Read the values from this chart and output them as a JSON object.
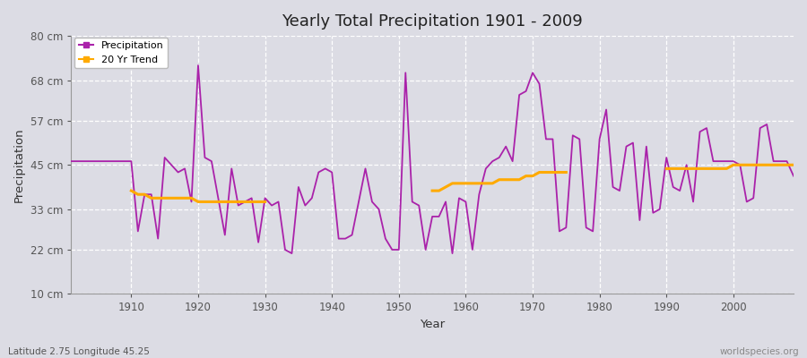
{
  "title": "Yearly Total Precipitation 1901 - 2009",
  "xlabel": "Year",
  "ylabel": "Precipitation",
  "subtitle": "Latitude 2.75 Longitude 45.25",
  "watermark": "worldspecies.org",
  "bg_color": "#dcdce4",
  "plot_bg_color": "#dcdce4",
  "precip_color": "#aa22aa",
  "trend_color": "#ffaa00",
  "ylim": [
    10,
    80
  ],
  "yticks": [
    10,
    22,
    33,
    45,
    57,
    68,
    80
  ],
  "ytick_labels": [
    "10 cm",
    "22 cm",
    "33 cm",
    "45 cm",
    "57 cm",
    "68 cm",
    "80 cm"
  ],
  "years": [
    1901,
    1902,
    1903,
    1904,
    1905,
    1906,
    1907,
    1908,
    1909,
    1910,
    1911,
    1912,
    1913,
    1914,
    1915,
    1916,
    1917,
    1918,
    1919,
    1920,
    1921,
    1922,
    1923,
    1924,
    1925,
    1926,
    1927,
    1928,
    1929,
    1930,
    1931,
    1932,
    1933,
    1934,
    1935,
    1936,
    1937,
    1938,
    1939,
    1940,
    1941,
    1942,
    1943,
    1944,
    1945,
    1946,
    1947,
    1948,
    1949,
    1950,
    1951,
    1952,
    1953,
    1954,
    1955,
    1956,
    1957,
    1958,
    1959,
    1960,
    1961,
    1962,
    1963,
    1964,
    1965,
    1966,
    1967,
    1968,
    1969,
    1970,
    1971,
    1972,
    1973,
    1974,
    1975,
    1976,
    1977,
    1978,
    1979,
    1980,
    1981,
    1982,
    1983,
    1984,
    1985,
    1986,
    1987,
    1988,
    1989,
    1990,
    1991,
    1992,
    1993,
    1994,
    1995,
    1996,
    1997,
    1998,
    1999,
    2000,
    2001,
    2002,
    2003,
    2004,
    2005,
    2006,
    2007,
    2008,
    2009
  ],
  "precip": [
    46,
    46,
    46,
    46,
    46,
    46,
    46,
    46,
    46,
    46,
    27,
    37,
    37,
    25,
    47,
    45,
    43,
    44,
    35,
    72,
    47,
    46,
    36,
    26,
    44,
    34,
    35,
    36,
    24,
    36,
    34,
    35,
    22,
    21,
    39,
    34,
    36,
    43,
    44,
    43,
    25,
    25,
    26,
    35,
    44,
    35,
    33,
    25,
    22,
    22,
    70,
    35,
    34,
    22,
    31,
    31,
    35,
    21,
    36,
    35,
    22,
    37,
    44,
    46,
    47,
    50,
    46,
    64,
    65,
    70,
    67,
    52,
    52,
    27,
    28,
    53,
    52,
    28,
    27,
    52,
    60,
    39,
    38,
    50,
    51,
    30,
    50,
    32,
    33,
    47,
    39,
    38,
    45,
    35,
    54,
    55,
    46,
    46,
    46,
    46,
    45,
    35,
    36,
    55,
    56,
    46,
    46,
    46,
    42
  ],
  "trend_segments": [
    {
      "years": [
        1910,
        1911,
        1912,
        1913,
        1914,
        1915,
        1916,
        1917,
        1918,
        1919,
        1920,
        1921,
        1922,
        1923,
        1924,
        1925,
        1926,
        1927,
        1928,
        1929,
        1930
      ],
      "values": [
        38,
        37,
        37,
        36,
        36,
        36,
        36,
        36,
        36,
        36,
        35,
        35,
        35,
        35,
        35,
        35,
        35,
        35,
        35,
        35,
        35
      ]
    },
    {
      "years": [
        1955,
        1956,
        1957,
        1958,
        1959,
        1960,
        1961,
        1962,
        1963,
        1964,
        1965,
        1966,
        1967,
        1968,
        1969,
        1970,
        1971,
        1972,
        1973,
        1974,
        1975
      ],
      "values": [
        38,
        38,
        39,
        40,
        40,
        40,
        40,
        40,
        40,
        40,
        41,
        41,
        41,
        41,
        42,
        42,
        43,
        43,
        43,
        43,
        43
      ]
    },
    {
      "years": [
        1990,
        1991,
        1992,
        1993,
        1994,
        1995,
        1996,
        1997,
        1998,
        1999,
        2000,
        2001,
        2002,
        2003,
        2004,
        2005,
        2006,
        2007,
        2008,
        2009
      ],
      "values": [
        44,
        44,
        44,
        44,
        44,
        44,
        44,
        44,
        44,
        44,
        45,
        45,
        45,
        45,
        45,
        45,
        45,
        45,
        45,
        45
      ]
    }
  ]
}
